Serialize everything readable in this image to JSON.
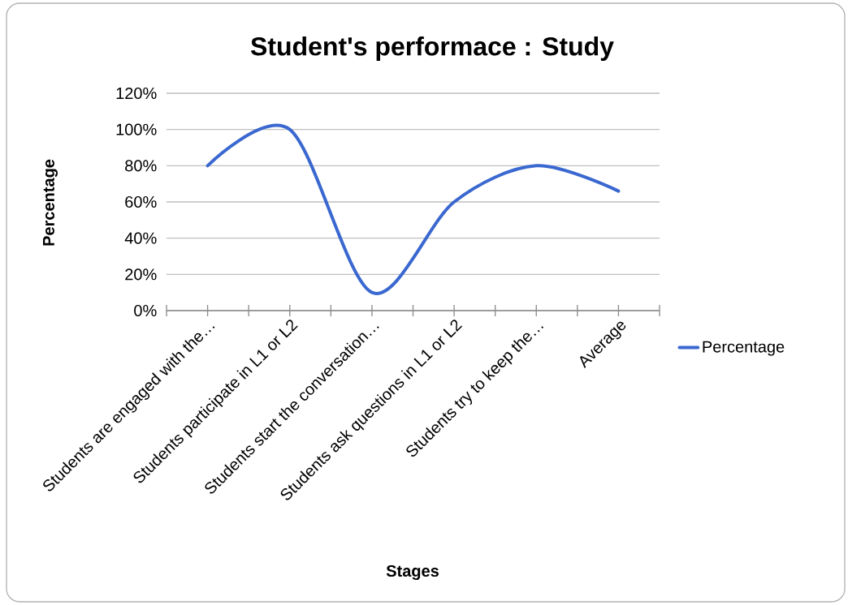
{
  "chart_data": {
    "type": "line",
    "title": "Student's performace : Study",
    "xlabel": "Stages",
    "ylabel": "Percentage",
    "categories": [
      "Students are engaged with the…",
      "Students participate in L1 or L2",
      "Students start the conversation…",
      "Students ask questions in L1 or L2",
      "Students try to keep the…",
      "Average"
    ],
    "series": [
      {
        "name": "Percentage",
        "color": "#3a68d0",
        "values": [
          80,
          100,
          10,
          60,
          80,
          66
        ]
      }
    ],
    "ylim": [
      0,
      120
    ],
    "yticks": [
      {
        "value": 0,
        "label": "0%"
      },
      {
        "value": 20,
        "label": "20%"
      },
      {
        "value": 40,
        "label": "40%"
      },
      {
        "value": 60,
        "label": "60%"
      },
      {
        "value": 80,
        "label": "80%"
      },
      {
        "value": 100,
        "label": "100%"
      },
      {
        "value": 120,
        "label": "120%"
      }
    ],
    "grid": "y",
    "legend": "right",
    "marker": "none",
    "line_style": "solid"
  }
}
